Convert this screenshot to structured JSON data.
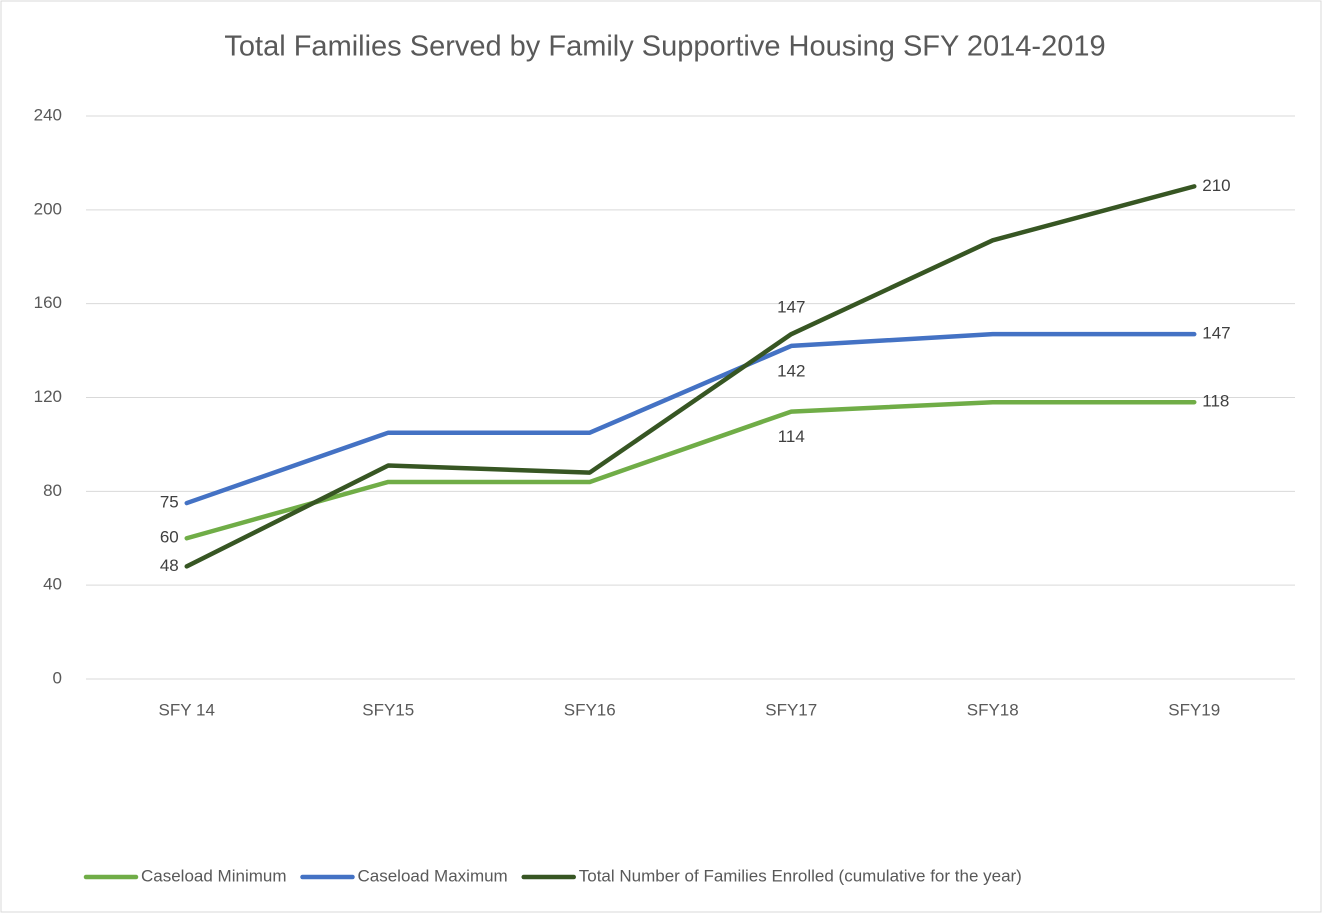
{
  "chart_data": {
    "type": "line",
    "title": "Total Families Served by Family Supportive Housing SFY 2014-2019",
    "categories": [
      "SFY 14",
      "SFY15",
      "SFY16",
      "SFY17",
      "SFY18",
      "SFY19"
    ],
    "series": [
      {
        "name": "Caseload Minimum",
        "color": "#70ad47",
        "values": [
          60,
          84,
          84,
          114,
          118,
          118
        ],
        "value_labels": [
          "60",
          null,
          null,
          "114",
          null,
          "118"
        ]
      },
      {
        "name": "Caseload Maximum",
        "color": "#4472c4",
        "values": [
          75,
          105,
          105,
          142,
          147,
          147
        ],
        "value_labels": [
          "75",
          null,
          null,
          "142",
          null,
          "147"
        ]
      },
      {
        "name": "Total Number of Families Enrolled (cumulative for the year)",
        "color": "#375623",
        "values": [
          48,
          91,
          88,
          147,
          187,
          210
        ],
        "value_labels": [
          "48",
          null,
          null,
          "147",
          null,
          "210"
        ]
      }
    ],
    "ylim": [
      0,
      240
    ],
    "yticks": [
      0,
      40,
      80,
      120,
      160,
      200,
      240
    ],
    "grid": true,
    "legend": "bottom"
  }
}
